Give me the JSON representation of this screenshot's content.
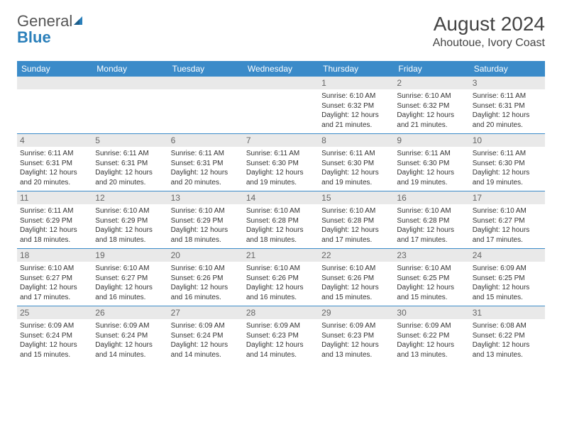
{
  "brand": {
    "word1": "General",
    "word2": "Blue"
  },
  "title": "August 2024",
  "location": "Ahoutoue, Ivory Coast",
  "colors": {
    "header_bg": "#3b8bc9",
    "header_text": "#ffffff",
    "daynum_bg": "#e9e9e9",
    "daynum_text": "#666666",
    "body_text": "#333333",
    "rule": "#3b8bc9",
    "logo_gray": "#555555",
    "logo_blue": "#2a7fba"
  },
  "typography": {
    "title_fontsize": 28,
    "location_fontsize": 16,
    "header_fontsize": 12,
    "daynum_fontsize": 12,
    "body_fontsize": 10
  },
  "days_of_week": [
    "Sunday",
    "Monday",
    "Tuesday",
    "Wednesday",
    "Thursday",
    "Friday",
    "Saturday"
  ],
  "weeks": [
    [
      {
        "num": "",
        "sunrise": "",
        "sunset": "",
        "daylight": ""
      },
      {
        "num": "",
        "sunrise": "",
        "sunset": "",
        "daylight": ""
      },
      {
        "num": "",
        "sunrise": "",
        "sunset": "",
        "daylight": ""
      },
      {
        "num": "",
        "sunrise": "",
        "sunset": "",
        "daylight": ""
      },
      {
        "num": "1",
        "sunrise": "Sunrise: 6:10 AM",
        "sunset": "Sunset: 6:32 PM",
        "daylight": "Daylight: 12 hours and 21 minutes."
      },
      {
        "num": "2",
        "sunrise": "Sunrise: 6:10 AM",
        "sunset": "Sunset: 6:32 PM",
        "daylight": "Daylight: 12 hours and 21 minutes."
      },
      {
        "num": "3",
        "sunrise": "Sunrise: 6:11 AM",
        "sunset": "Sunset: 6:31 PM",
        "daylight": "Daylight: 12 hours and 20 minutes."
      }
    ],
    [
      {
        "num": "4",
        "sunrise": "Sunrise: 6:11 AM",
        "sunset": "Sunset: 6:31 PM",
        "daylight": "Daylight: 12 hours and 20 minutes."
      },
      {
        "num": "5",
        "sunrise": "Sunrise: 6:11 AM",
        "sunset": "Sunset: 6:31 PM",
        "daylight": "Daylight: 12 hours and 20 minutes."
      },
      {
        "num": "6",
        "sunrise": "Sunrise: 6:11 AM",
        "sunset": "Sunset: 6:31 PM",
        "daylight": "Daylight: 12 hours and 20 minutes."
      },
      {
        "num": "7",
        "sunrise": "Sunrise: 6:11 AM",
        "sunset": "Sunset: 6:30 PM",
        "daylight": "Daylight: 12 hours and 19 minutes."
      },
      {
        "num": "8",
        "sunrise": "Sunrise: 6:11 AM",
        "sunset": "Sunset: 6:30 PM",
        "daylight": "Daylight: 12 hours and 19 minutes."
      },
      {
        "num": "9",
        "sunrise": "Sunrise: 6:11 AM",
        "sunset": "Sunset: 6:30 PM",
        "daylight": "Daylight: 12 hours and 19 minutes."
      },
      {
        "num": "10",
        "sunrise": "Sunrise: 6:11 AM",
        "sunset": "Sunset: 6:30 PM",
        "daylight": "Daylight: 12 hours and 19 minutes."
      }
    ],
    [
      {
        "num": "11",
        "sunrise": "Sunrise: 6:11 AM",
        "sunset": "Sunset: 6:29 PM",
        "daylight": "Daylight: 12 hours and 18 minutes."
      },
      {
        "num": "12",
        "sunrise": "Sunrise: 6:10 AM",
        "sunset": "Sunset: 6:29 PM",
        "daylight": "Daylight: 12 hours and 18 minutes."
      },
      {
        "num": "13",
        "sunrise": "Sunrise: 6:10 AM",
        "sunset": "Sunset: 6:29 PM",
        "daylight": "Daylight: 12 hours and 18 minutes."
      },
      {
        "num": "14",
        "sunrise": "Sunrise: 6:10 AM",
        "sunset": "Sunset: 6:28 PM",
        "daylight": "Daylight: 12 hours and 18 minutes."
      },
      {
        "num": "15",
        "sunrise": "Sunrise: 6:10 AM",
        "sunset": "Sunset: 6:28 PM",
        "daylight": "Daylight: 12 hours and 17 minutes."
      },
      {
        "num": "16",
        "sunrise": "Sunrise: 6:10 AM",
        "sunset": "Sunset: 6:28 PM",
        "daylight": "Daylight: 12 hours and 17 minutes."
      },
      {
        "num": "17",
        "sunrise": "Sunrise: 6:10 AM",
        "sunset": "Sunset: 6:27 PM",
        "daylight": "Daylight: 12 hours and 17 minutes."
      }
    ],
    [
      {
        "num": "18",
        "sunrise": "Sunrise: 6:10 AM",
        "sunset": "Sunset: 6:27 PM",
        "daylight": "Daylight: 12 hours and 17 minutes."
      },
      {
        "num": "19",
        "sunrise": "Sunrise: 6:10 AM",
        "sunset": "Sunset: 6:27 PM",
        "daylight": "Daylight: 12 hours and 16 minutes."
      },
      {
        "num": "20",
        "sunrise": "Sunrise: 6:10 AM",
        "sunset": "Sunset: 6:26 PM",
        "daylight": "Daylight: 12 hours and 16 minutes."
      },
      {
        "num": "21",
        "sunrise": "Sunrise: 6:10 AM",
        "sunset": "Sunset: 6:26 PM",
        "daylight": "Daylight: 12 hours and 16 minutes."
      },
      {
        "num": "22",
        "sunrise": "Sunrise: 6:10 AM",
        "sunset": "Sunset: 6:26 PM",
        "daylight": "Daylight: 12 hours and 15 minutes."
      },
      {
        "num": "23",
        "sunrise": "Sunrise: 6:10 AM",
        "sunset": "Sunset: 6:25 PM",
        "daylight": "Daylight: 12 hours and 15 minutes."
      },
      {
        "num": "24",
        "sunrise": "Sunrise: 6:09 AM",
        "sunset": "Sunset: 6:25 PM",
        "daylight": "Daylight: 12 hours and 15 minutes."
      }
    ],
    [
      {
        "num": "25",
        "sunrise": "Sunrise: 6:09 AM",
        "sunset": "Sunset: 6:24 PM",
        "daylight": "Daylight: 12 hours and 15 minutes."
      },
      {
        "num": "26",
        "sunrise": "Sunrise: 6:09 AM",
        "sunset": "Sunset: 6:24 PM",
        "daylight": "Daylight: 12 hours and 14 minutes."
      },
      {
        "num": "27",
        "sunrise": "Sunrise: 6:09 AM",
        "sunset": "Sunset: 6:24 PM",
        "daylight": "Daylight: 12 hours and 14 minutes."
      },
      {
        "num": "28",
        "sunrise": "Sunrise: 6:09 AM",
        "sunset": "Sunset: 6:23 PM",
        "daylight": "Daylight: 12 hours and 14 minutes."
      },
      {
        "num": "29",
        "sunrise": "Sunrise: 6:09 AM",
        "sunset": "Sunset: 6:23 PM",
        "daylight": "Daylight: 12 hours and 13 minutes."
      },
      {
        "num": "30",
        "sunrise": "Sunrise: 6:09 AM",
        "sunset": "Sunset: 6:22 PM",
        "daylight": "Daylight: 12 hours and 13 minutes."
      },
      {
        "num": "31",
        "sunrise": "Sunrise: 6:08 AM",
        "sunset": "Sunset: 6:22 PM",
        "daylight": "Daylight: 12 hours and 13 minutes."
      }
    ]
  ]
}
